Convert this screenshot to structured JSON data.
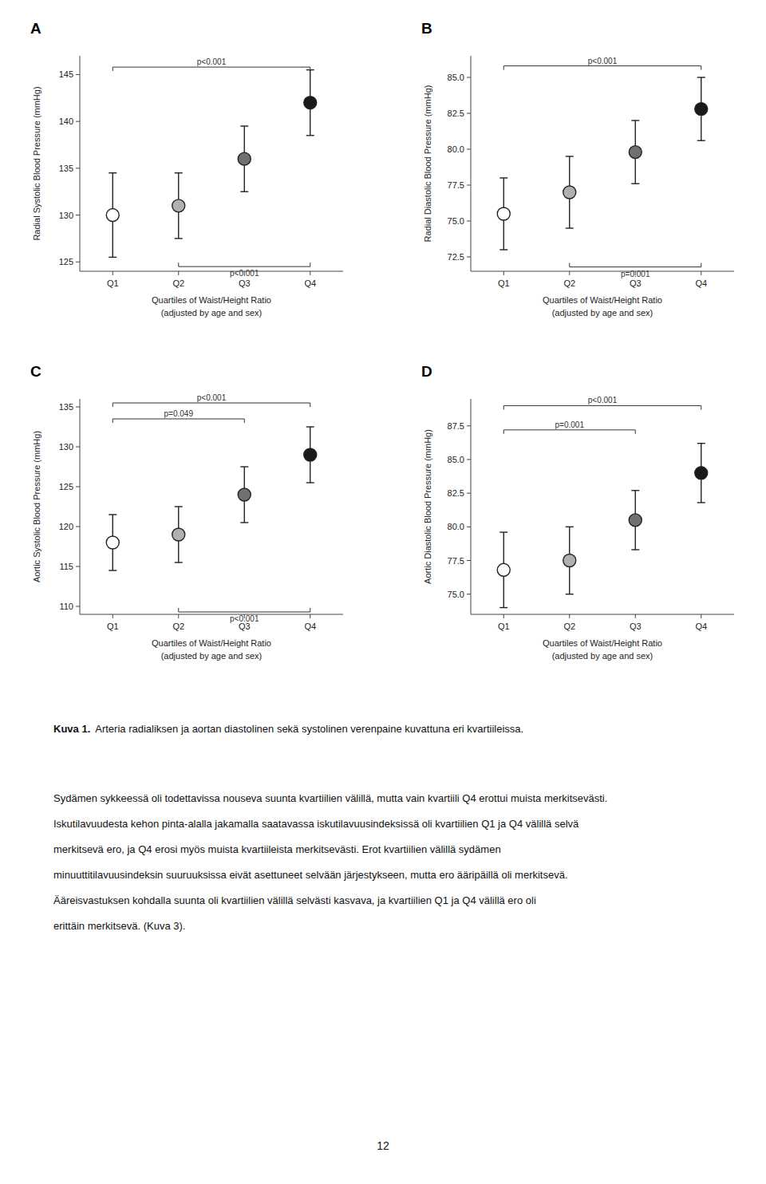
{
  "chart_data": [
    {
      "type": "dot",
      "title": "A",
      "ylabel": "Radial Systolic Blood Pressure (mmHg)",
      "xlabel": "Quartiles of Waist/Height Ratio\n(adjusted by age and sex)",
      "categories": [
        "Q1",
        "Q2",
        "Q3",
        "Q4"
      ],
      "values": [
        130,
        131,
        136,
        142
      ],
      "errors": [
        4.5,
        3.5,
        3.5,
        3.5
      ],
      "colors": [
        "white",
        "#b0b0b0",
        "#707070",
        "#1a1a1a"
      ],
      "ylim": [
        124,
        147
      ],
      "yticks": [
        125,
        130,
        135,
        140,
        145
      ],
      "annotations": [
        {
          "from": "Q1",
          "to": "Q4",
          "y": 145.8,
          "label": "p<0.001",
          "top": true
        },
        {
          "from": "Q2",
          "to": "Q4",
          "y": 124.5,
          "label": "p<0.001",
          "top": false
        }
      ]
    },
    {
      "type": "dot",
      "title": "B",
      "ylabel": "Radial Diastolic Blood Pressure (mmHg)",
      "xlabel": "Quartiles of Waist/Height Ratio\n(adjusted by age and sex)",
      "categories": [
        "Q1",
        "Q2",
        "Q3",
        "Q4"
      ],
      "values": [
        75.5,
        77.0,
        79.8,
        82.8
      ],
      "errors": [
        2.5,
        2.5,
        2.2,
        2.2
      ],
      "colors": [
        "white",
        "#b0b0b0",
        "#707070",
        "#1a1a1a"
      ],
      "ylim": [
        71.5,
        86.5
      ],
      "yticks": [
        72.5,
        {
          "value": 75.0,
          "label": "75.0"
        },
        77.5,
        {
          "value": 80.0,
          "label": "80.0"
        },
        82.5,
        {
          "value": 85.0,
          "label": "85.0"
        }
      ],
      "annotations": [
        {
          "from": "Q1",
          "to": "Q4",
          "y": 85.8,
          "label": "p<0.001",
          "top": true
        },
        {
          "from": "Q2",
          "to": "Q4",
          "y": 71.8,
          "label": "p=0.001",
          "top": false
        }
      ]
    },
    {
      "type": "dot",
      "title": "C",
      "ylabel": "Aortic Systolic Blood Pressure (mmHg)",
      "xlabel": "Quartiles of Waist/Height Ratio\n(adjusted by age and sex)",
      "categories": [
        "Q1",
        "Q2",
        "Q3",
        "Q4"
      ],
      "values": [
        118,
        119,
        124,
        129
      ],
      "errors": [
        3.5,
        3.5,
        3.5,
        3.5
      ],
      "colors": [
        "white",
        "#b0b0b0",
        "#707070",
        "#1a1a1a"
      ],
      "ylim": [
        109,
        136
      ],
      "yticks": [
        110,
        115,
        120,
        125,
        130,
        135
      ],
      "annotations": [
        {
          "from": "Q1",
          "to": "Q4",
          "y": 135.5,
          "label": "p<0.001",
          "top": true
        },
        {
          "from": "Q1",
          "to": "Q3",
          "y": 133.5,
          "label": "p=0.049",
          "top": true
        },
        {
          "from": "Q2",
          "to": "Q4",
          "y": 109.3,
          "label": "p<0.001",
          "top": false
        }
      ]
    },
    {
      "type": "dot",
      "title": "D",
      "ylabel": "Aortic Diastolic Blood Pressure (mmHg)",
      "xlabel": "Quartiles of Waist/Height Ratio\n(adjusted by age and sex)",
      "categories": [
        "Q1",
        "Q2",
        "Q3",
        "Q4"
      ],
      "values": [
        76.8,
        77.5,
        80.5,
        84.0
      ],
      "errors": [
        2.8,
        2.5,
        2.2,
        2.2
      ],
      "colors": [
        "white",
        "#b0b0b0",
        "#707070",
        "#1a1a1a"
      ],
      "ylim": [
        73.5,
        89.5
      ],
      "yticks": [
        {
          "value": 75.0,
          "label": "75.0"
        },
        77.5,
        {
          "value": 80.0,
          "label": "80.0"
        },
        82.5,
        {
          "value": 85.0,
          "label": "85.0"
        },
        87.5
      ],
      "annotations": [
        {
          "from": "Q1",
          "to": "Q4",
          "y": 89.0,
          "label": "p<0.001",
          "top": true
        },
        {
          "from": "Q1",
          "to": "Q3",
          "y": 87.2,
          "label": "p=0.001",
          "top": true
        }
      ]
    }
  ],
  "caption_label": "Kuva 1.",
  "caption": "Arteria radialiksen ja aortan diastolinen sekä systolinen verenpaine kuvattuna eri kvartiileissa.",
  "body_text_lines": [
    "Sydämen sykkeessä oli todettavissa nouseva suunta kvartiilien välillä, mutta vain kvartiili Q4 erottui muista merkitsevästi.",
    "Iskutilavuudesta kehon pinta-alalla jakamalla saatavassa iskutilavuusindeksissä oli kvartiilien Q1 ja Q4 välillä selvä",
    "merkitsevä ero, ja Q4 erosi myös muista kvartiileista merkitsevästi. Erot kvartiilien välillä sydämen",
    "minuuttitilavuusindeksin suuruuksissa eivät asettuneet selvään järjestykseen, mutta ero ääripäillä oli merkitsevä.",
    "Ääreisvastuksen kohdalla suunta oli kvartiilien välillä selvästi kasvava, ja kvartiilien Q1 ja Q4 välillä ero oli",
    "erittäin merkitsevä. (Kuva 3)."
  ],
  "page_number": "12"
}
